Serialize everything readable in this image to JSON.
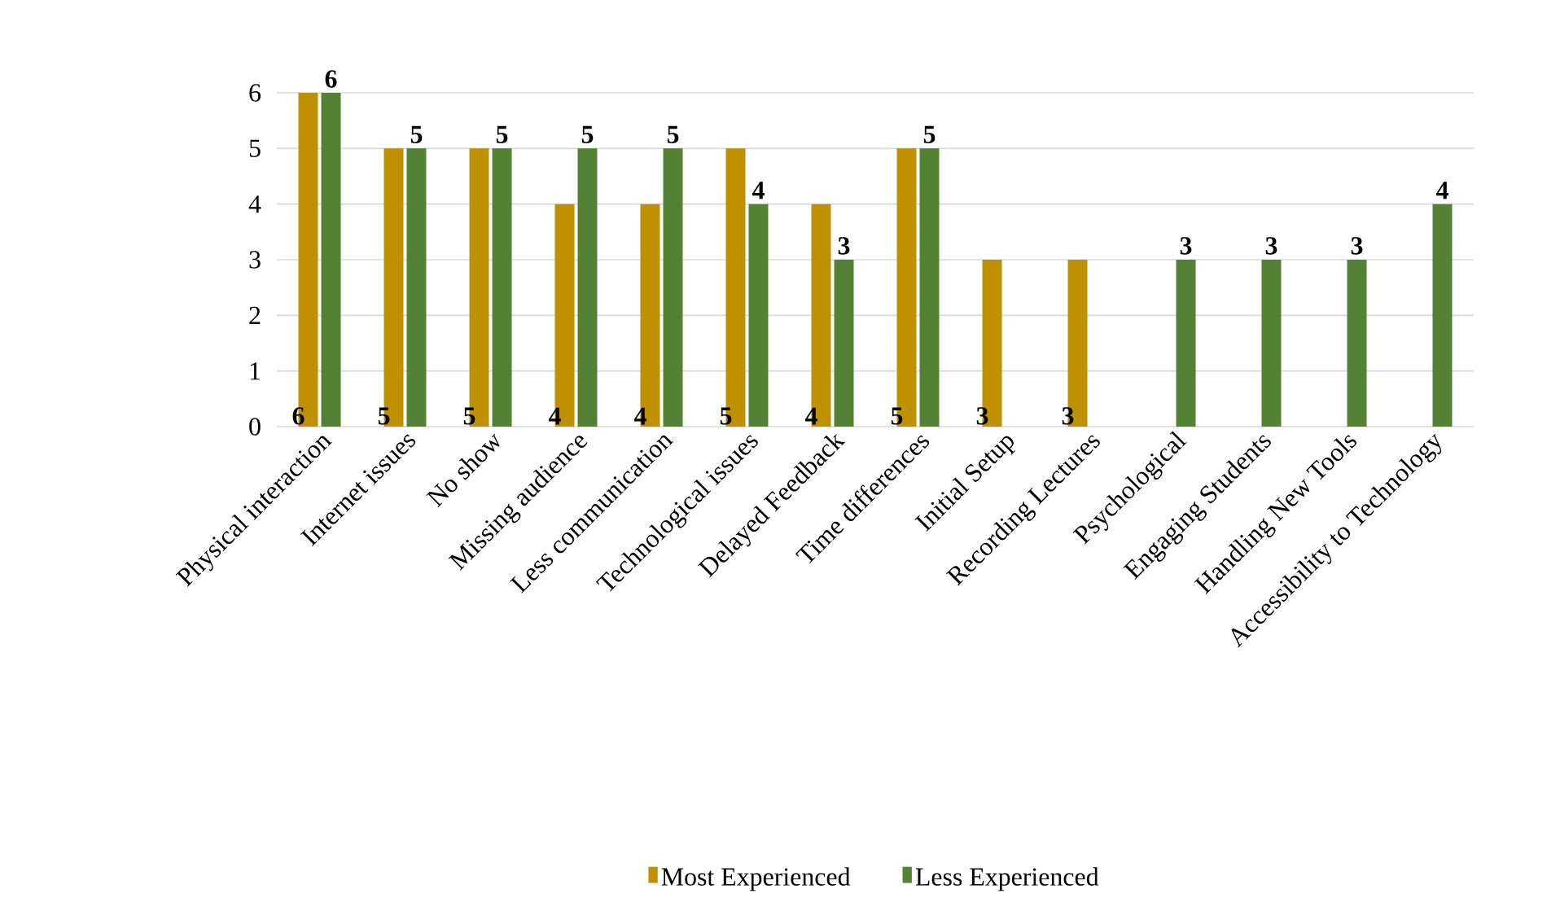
{
  "chart_data": {
    "type": "bar",
    "categories": [
      "Physical interaction",
      "Internet issues",
      "No show",
      "Missing audience",
      "Less communication",
      "Technological issues",
      "Delayed Feedback",
      "Time differences",
      "Initial Setup",
      "Recording Lectures",
      "Psychological",
      "Engaging Students",
      "Handling New Tools",
      "Accessibility to Technology"
    ],
    "series": [
      {
        "name": "Most Experienced",
        "color": "#bf9000",
        "values": [
          6,
          5,
          5,
          4,
          4,
          5,
          4,
          5,
          3,
          3,
          null,
          null,
          null,
          null
        ]
      },
      {
        "name": "Less Experienced",
        "color": "#548235",
        "values": [
          6,
          5,
          5,
          5,
          5,
          4,
          3,
          5,
          null,
          null,
          3,
          3,
          3,
          4
        ]
      }
    ],
    "ylim": [
      0,
      6
    ],
    "yticks": [
      0,
      1,
      2,
      3,
      4,
      5,
      6
    ],
    "grid": "y",
    "legend": "bottom",
    "data_labels": true
  }
}
